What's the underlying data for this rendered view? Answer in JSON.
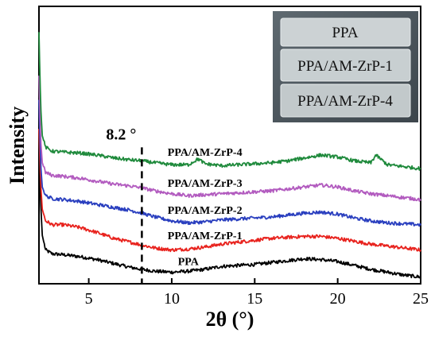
{
  "chart_data": {
    "type": "line",
    "xlabel": "2θ (°)",
    "ylabel": "Intensity",
    "xlim": [
      2,
      25
    ],
    "x_ticks": [
      5,
      10,
      15,
      20,
      25
    ],
    "y_ticks_shown": false,
    "annotation": {
      "text": "8.2 °",
      "x": 8.2,
      "style": "dashed vertical line"
    },
    "series": [
      {
        "name": "PPA",
        "color": "#000000",
        "points": [
          [
            2.0,
            1.3
          ],
          [
            2.1,
            0.8
          ],
          [
            2.2,
            0.45
          ],
          [
            2.4,
            0.3
          ],
          [
            2.8,
            0.26
          ],
          [
            3.5,
            0.25
          ],
          [
            4.5,
            0.23
          ],
          [
            5.5,
            0.2
          ],
          [
            6.5,
            0.16
          ],
          [
            7.5,
            0.12
          ],
          [
            8.2,
            0.1
          ],
          [
            9,
            0.08
          ],
          [
            10,
            0.07
          ],
          [
            11,
            0.08
          ],
          [
            12,
            0.1
          ],
          [
            13,
            0.13
          ],
          [
            14,
            0.14
          ],
          [
            15,
            0.15
          ],
          [
            16,
            0.17
          ],
          [
            17,
            0.19
          ],
          [
            18,
            0.21
          ],
          [
            19,
            0.2
          ],
          [
            20,
            0.18
          ],
          [
            21,
            0.14
          ],
          [
            22,
            0.1
          ],
          [
            23,
            0.07
          ],
          [
            24,
            0.04
          ],
          [
            25,
            0.02
          ]
        ]
      },
      {
        "name": "PPA/AM-ZrP-1",
        "color": "#e8231e",
        "points": [
          [
            2.0,
            1.55
          ],
          [
            2.1,
            1.0
          ],
          [
            2.2,
            0.72
          ],
          [
            2.4,
            0.6
          ],
          [
            2.8,
            0.56
          ],
          [
            3.5,
            0.56
          ],
          [
            4.5,
            0.53
          ],
          [
            5.5,
            0.48
          ],
          [
            6.5,
            0.42
          ],
          [
            7.5,
            0.38
          ],
          [
            8.2,
            0.35
          ],
          [
            9,
            0.32
          ],
          [
            10,
            0.3
          ],
          [
            11,
            0.31
          ],
          [
            12,
            0.33
          ],
          [
            13,
            0.36
          ],
          [
            14,
            0.38
          ],
          [
            15,
            0.4
          ],
          [
            16,
            0.42
          ],
          [
            17,
            0.43
          ],
          [
            18,
            0.44
          ],
          [
            19,
            0.44
          ],
          [
            20,
            0.42
          ],
          [
            21,
            0.39
          ],
          [
            22,
            0.36
          ],
          [
            23,
            0.34
          ],
          [
            24,
            0.32
          ],
          [
            25,
            0.3
          ]
        ]
      },
      {
        "name": "PPA/AM-ZrP-2",
        "color": "#2a3fbf",
        "points": [
          [
            2.0,
            1.85
          ],
          [
            2.1,
            1.2
          ],
          [
            2.2,
            0.95
          ],
          [
            2.4,
            0.86
          ],
          [
            2.8,
            0.83
          ],
          [
            3.5,
            0.82
          ],
          [
            4.5,
            0.8
          ],
          [
            5.5,
            0.77
          ],
          [
            6.5,
            0.74
          ],
          [
            7.5,
            0.71
          ],
          [
            8.2,
            0.68
          ],
          [
            9,
            0.64
          ],
          [
            10,
            0.6
          ],
          [
            11,
            0.58
          ],
          [
            12,
            0.59
          ],
          [
            13,
            0.61
          ],
          [
            14,
            0.62
          ],
          [
            15,
            0.63
          ],
          [
            16,
            0.64
          ],
          [
            17,
            0.66
          ],
          [
            18,
            0.68
          ],
          [
            19,
            0.69
          ],
          [
            20,
            0.67
          ],
          [
            21,
            0.63
          ],
          [
            22,
            0.6
          ],
          [
            23,
            0.58
          ],
          [
            24,
            0.57
          ],
          [
            25,
            0.56
          ]
        ]
      },
      {
        "name": "PPA/AM-ZrP-3",
        "color": "#b25bbf",
        "points": [
          [
            2.0,
            2.1
          ],
          [
            2.1,
            1.45
          ],
          [
            2.2,
            1.2
          ],
          [
            2.4,
            1.1
          ],
          [
            2.8,
            1.07
          ],
          [
            3.5,
            1.06
          ],
          [
            4.5,
            1.04
          ],
          [
            5.5,
            1.01
          ],
          [
            6.5,
            0.98
          ],
          [
            7.5,
            0.96
          ],
          [
            8.2,
            0.94
          ],
          [
            9,
            0.91
          ],
          [
            10,
            0.88
          ],
          [
            11,
            0.86
          ],
          [
            12,
            0.87
          ],
          [
            13,
            0.88
          ],
          [
            14,
            0.89
          ],
          [
            15,
            0.9
          ],
          [
            16,
            0.91
          ],
          [
            17,
            0.93
          ],
          [
            18,
            0.95
          ],
          [
            19,
            0.97
          ],
          [
            20,
            0.95
          ],
          [
            21,
            0.91
          ],
          [
            22,
            0.88
          ],
          [
            23,
            0.86
          ],
          [
            24,
            0.84
          ],
          [
            25,
            0.82
          ]
        ]
      },
      {
        "name": "PPA/AM-ZrP-4",
        "color": "#1f8a3c",
        "points": [
          [
            2.0,
            2.55
          ],
          [
            2.1,
            1.8
          ],
          [
            2.2,
            1.48
          ],
          [
            2.4,
            1.36
          ],
          [
            2.8,
            1.32
          ],
          [
            3.5,
            1.31
          ],
          [
            4.5,
            1.3
          ],
          [
            5.5,
            1.28
          ],
          [
            6.5,
            1.25
          ],
          [
            7.5,
            1.23
          ],
          [
            8.2,
            1.22
          ],
          [
            9,
            1.2
          ],
          [
            10,
            1.18
          ],
          [
            11,
            1.18
          ],
          [
            11.6,
            1.24
          ],
          [
            12,
            1.19
          ],
          [
            13,
            1.17
          ],
          [
            14,
            1.18
          ],
          [
            15,
            1.19
          ],
          [
            16,
            1.2
          ],
          [
            17,
            1.22
          ],
          [
            18,
            1.25
          ],
          [
            19,
            1.28
          ],
          [
            20,
            1.26
          ],
          [
            21,
            1.22
          ],
          [
            22,
            1.2
          ],
          [
            22.3,
            1.28
          ],
          [
            23,
            1.18
          ],
          [
            24,
            1.16
          ],
          [
            25,
            1.14
          ]
        ]
      }
    ]
  },
  "inset": {
    "labels": [
      "PPA",
      "PPA/AM-ZrP-1",
      "PPA/AM-ZrP-4"
    ]
  }
}
